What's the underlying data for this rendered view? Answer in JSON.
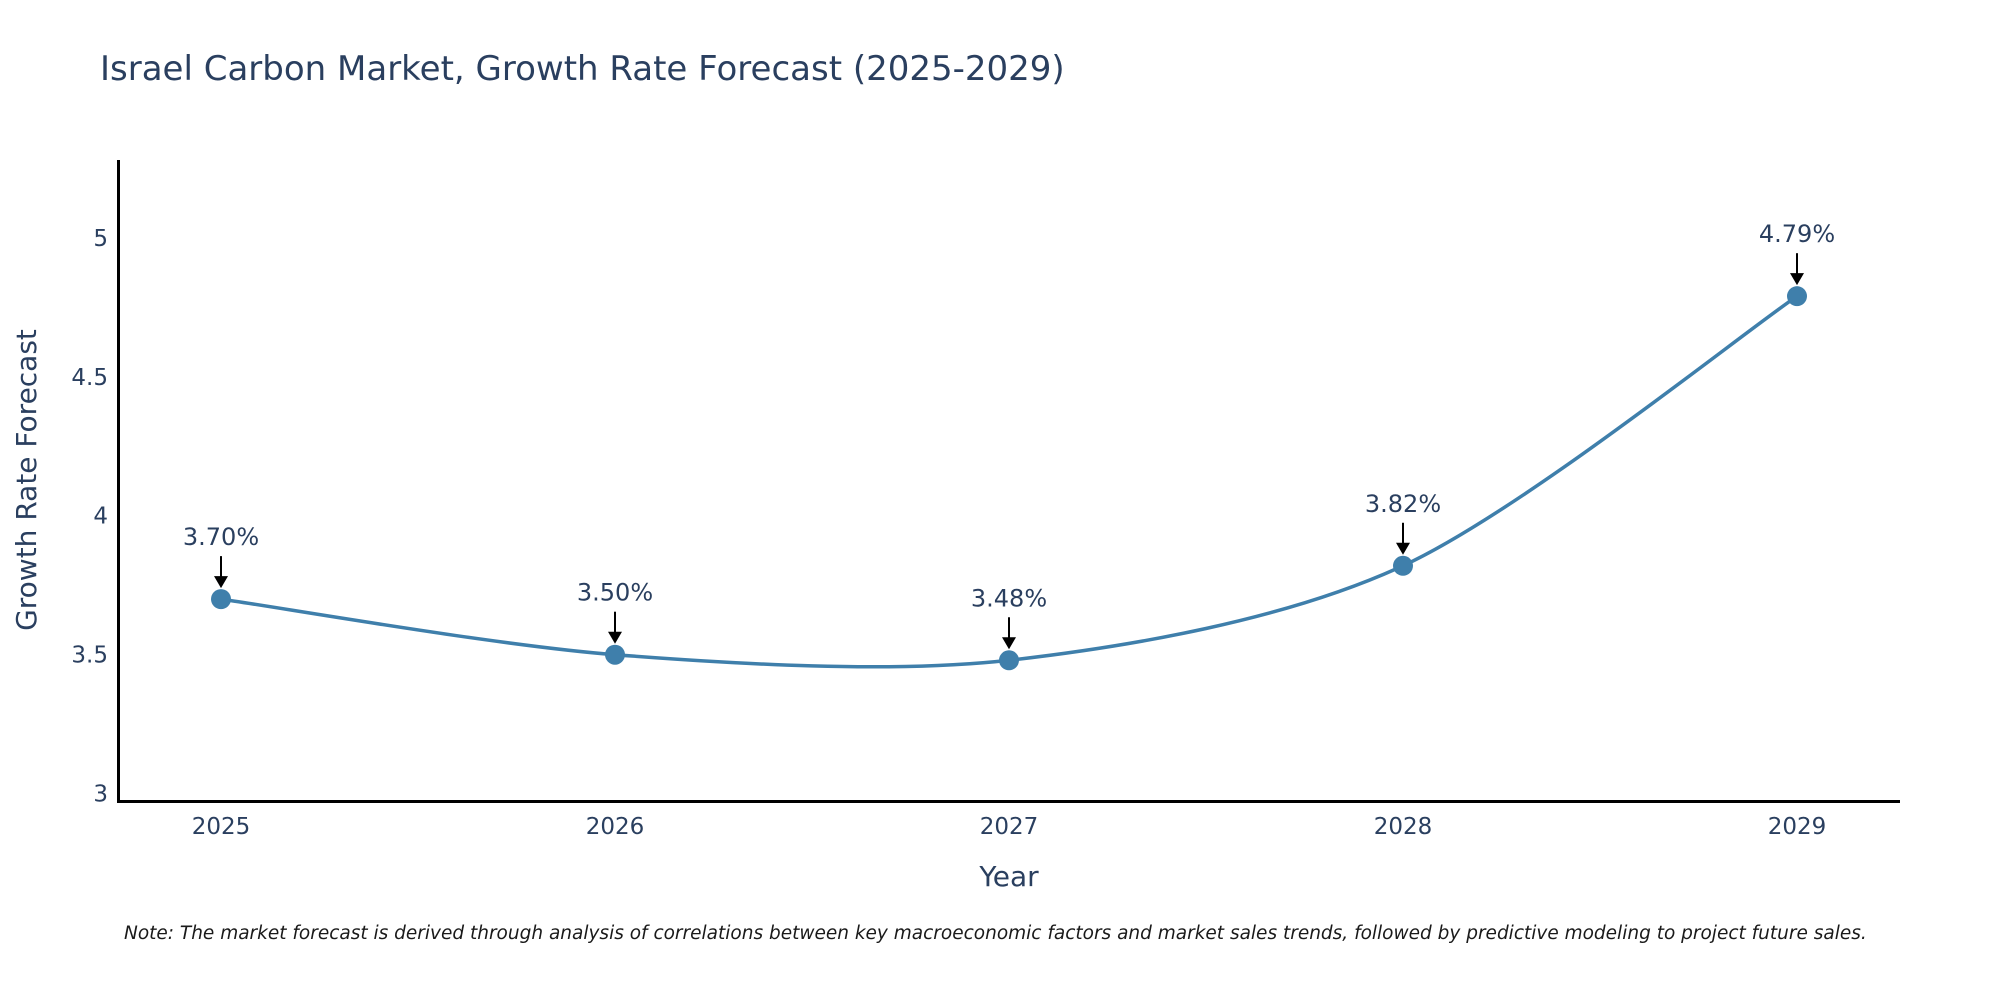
{
  "chart_data": {
    "type": "line",
    "title": "Israel Carbon Market, Growth Rate Forecast (2025-2029)",
    "xlabel": "Year",
    "ylabel": "Growth Rate Forecast",
    "categories": [
      "2025",
      "2026",
      "2027",
      "2028",
      "2029"
    ],
    "series": [
      {
        "name": "Growth Rate Forecast",
        "values": [
          3.7,
          3.5,
          3.48,
          3.82,
          4.79
        ],
        "labels": [
          "3.70%",
          "3.50%",
          "3.48%",
          "3.82%",
          "4.79%"
        ],
        "color": "#3f7fab",
        "line_shape": "spline"
      }
    ],
    "ylim": [
      2.97,
      5.28
    ],
    "yticks": [
      3,
      3.5,
      4,
      4.5,
      5
    ],
    "ytick_labels": [
      "3",
      "3.5",
      "4",
      "4.5",
      "5"
    ],
    "grid": false,
    "annotation_arrow_color": "#000000",
    "note": "Note: The market forecast is derived through analysis of correlations between key macroeconomic factors and market sales trends, followed by predictive modeling to project future sales."
  }
}
